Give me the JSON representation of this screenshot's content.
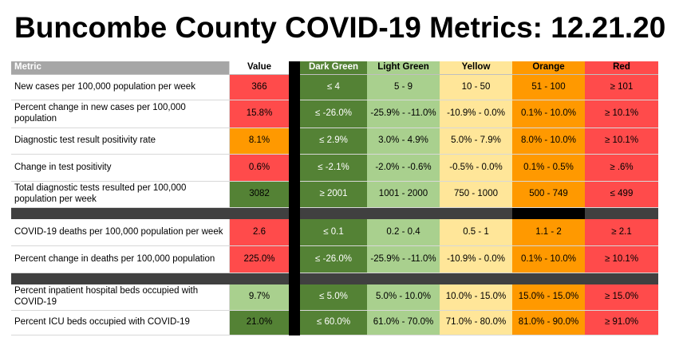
{
  "title": "Buncombe County COVID-19 Metrics: 12.21.20",
  "headers": {
    "metric": "Metric",
    "value": "Value",
    "dark_green": "Dark Green",
    "light_green": "Light Green",
    "yellow": "Yellow",
    "orange": "Orange",
    "red": "Red"
  },
  "colors": {
    "dark_green": "#548235",
    "light_green": "#a9d08e",
    "yellow": "#ffe699",
    "orange": "#ff9900",
    "red": "#ff4b4b",
    "separator": "#404040"
  },
  "rows": [
    {
      "metric": "New cases  per 100,000 population per week",
      "value": "366",
      "value_level": "red",
      "dg": "≤ 4",
      "lg": "5 - 9",
      "y": "10 - 50",
      "o": "51 - 100",
      "r": "≥ 101"
    },
    {
      "metric": "Percent change in new cases per 100,000 population",
      "value": "15.8%",
      "value_level": "red",
      "dg": "≤ -26.0%",
      "lg": "-25.9% - -11.0%",
      "y": "-10.9% - 0.0%",
      "o": "0.1% - 10.0%",
      "r": "≥ 10.1%"
    },
    {
      "metric": "Diagnostic test result positivity rate",
      "value": "8.1%",
      "value_level": "orange",
      "dg": "≤ 2.9%",
      "lg": "3.0% - 4.9%",
      "y": "5.0% - 7.9%",
      "o": "8.0% - 10.0%",
      "r": "≥ 10.1%"
    },
    {
      "metric": "Change in test positivity",
      "value": "0.6%",
      "value_level": "red",
      "dg": "≤ -2.1%",
      "lg": "-2.0% - -0.6%",
      "y": "-0.5% - 0.0%",
      "o": "0.1% - 0.5%",
      "r": "≥ .6%"
    },
    {
      "metric": "Total diagnostic tests resulted per 100,000 population per week",
      "value": "3082",
      "value_level": "dark_green",
      "dg": "≥ 2001",
      "lg": "1001 - 2000",
      "y": "750 - 1000",
      "o": "500 - 749",
      "r": "≤ 499"
    },
    {
      "metric": "COVID-19 deaths per 100,000 population per week",
      "value": "2.6",
      "value_level": "red",
      "dg": "≤ 0.1",
      "lg": "0.2 - 0.4",
      "y": "0.5 - 1",
      "o": "1.1 - 2",
      "r": "≥ 2.1"
    },
    {
      "metric": "Percent change in deaths per 100,000 population",
      "value": "225.0%",
      "value_level": "red",
      "dg": "≤ -26.0%",
      "lg": "-25.9% - -11.0%",
      "y": "-10.9% - 0.0%",
      "o": "0.1% - 10.0%",
      "r": "≥ 10.1%"
    },
    {
      "metric": "Percent inpatient hospital beds occupied with COVID-19",
      "value": "9.7%",
      "value_level": "light_green",
      "dg": "≤ 5.0%",
      "lg": "5.0% - 10.0%",
      "y": "10.0% - 15.0%",
      "o": "15.0% - 15.0%",
      "r": "≥ 15.0%"
    },
    {
      "metric": "Percent ICU beds occupied with COVID-19",
      "value": "21.0%",
      "value_level": "dark_green",
      "dg": "≤ 60.0%",
      "lg": "61.0% - 70.0%",
      "y": "71.0% - 80.0%",
      "o": "81.0% - 90.0%",
      "r": "≥ 91.0%"
    }
  ]
}
